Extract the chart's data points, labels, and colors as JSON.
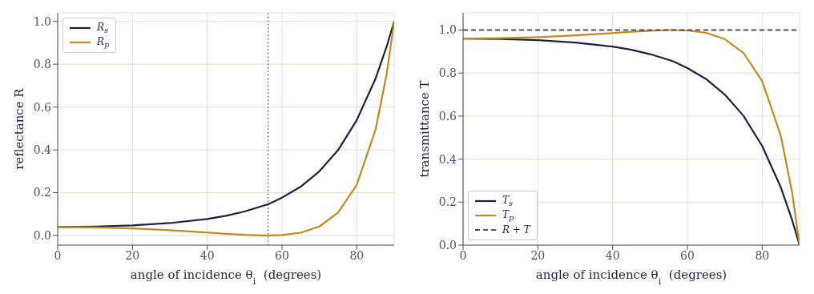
{
  "chart_data": [
    {
      "type": "line",
      "xlabel": "angle of incidence θ$_{i}$  (degrees)",
      "ylabel": "reflectance R",
      "x": [
        0,
        10,
        20,
        30,
        40,
        45,
        50,
        55,
        56.3,
        60,
        65,
        70,
        75,
        80,
        85,
        88,
        90
      ],
      "series": [
        {
          "name": "R$_{s}$",
          "color": "#1b2340",
          "values": [
            0.04,
            0.042,
            0.047,
            0.058,
            0.077,
            0.092,
            0.112,
            0.139,
            0.146,
            0.177,
            0.228,
            0.3,
            0.399,
            0.539,
            0.732,
            0.883,
            1.0
          ]
        },
        {
          "name": "R$_{p}$",
          "color": "#c28a1e",
          "values": [
            0.04,
            0.038,
            0.033,
            0.025,
            0.014,
            0.008,
            0.003,
            0.0,
            0.0,
            0.002,
            0.013,
            0.042,
            0.107,
            0.237,
            0.493,
            0.755,
            1.0
          ]
        }
      ],
      "xlim": [
        0,
        90
      ],
      "xticks": [
        0,
        20,
        40,
        60,
        80
      ],
      "ylim": [
        -0.045,
        1.04
      ],
      "yticks": [
        {
          "value": 0,
          "label": "0.0"
        },
        {
          "value": 0.2,
          "label": "0.2"
        },
        {
          "value": 0.4,
          "label": "0.4"
        },
        {
          "value": 0.6,
          "label": "0.6"
        },
        {
          "value": 0.8,
          "label": "0.8"
        },
        {
          "value": 1,
          "label": "1.0"
        }
      ],
      "ref_lines": [
        {
          "axis": "x",
          "value": 56.3,
          "color": "#4a5070",
          "line_style": "dotted"
        }
      ],
      "grid": true,
      "legend": "top left",
      "marker": "none",
      "line_style": "solid"
    },
    {
      "type": "line",
      "xlabel": "angle of incidence θ$_{i}$  (degrees)",
      "ylabel": "transmittance T",
      "x": [
        0,
        10,
        20,
        30,
        40,
        45,
        50,
        55,
        56.3,
        60,
        65,
        70,
        75,
        80,
        85,
        88,
        90
      ],
      "series": [
        {
          "name": "T$_{s}$",
          "color": "#1b2340",
          "values": [
            0.96,
            0.958,
            0.953,
            0.942,
            0.923,
            0.908,
            0.888,
            0.861,
            0.854,
            0.823,
            0.772,
            0.7,
            0.601,
            0.461,
            0.268,
            0.117,
            0.0
          ]
        },
        {
          "name": "T$_{p}$",
          "color": "#c28a1e",
          "values": [
            0.96,
            0.962,
            0.967,
            0.975,
            0.986,
            0.992,
            0.997,
            1.0,
            1.0,
            0.998,
            0.987,
            0.958,
            0.893,
            0.763,
            0.507,
            0.245,
            0.0
          ]
        },
        {
          "name": "R + T",
          "color": "#4a5070",
          "line_style": "dashed",
          "values": [
            1,
            1,
            1,
            1,
            1,
            1,
            1,
            1,
            1,
            1,
            1,
            1,
            1,
            1,
            1,
            1,
            1
          ]
        }
      ],
      "xlim": [
        0,
        90
      ],
      "xticks": [
        0,
        20,
        40,
        60,
        80
      ],
      "ylim": [
        0,
        1.08
      ],
      "yticks": [
        {
          "value": 0,
          "label": "0.0"
        },
        {
          "value": 0.2,
          "label": "0.2"
        },
        {
          "value": 0.4,
          "label": "0.4"
        },
        {
          "value": 0.6,
          "label": "0.6"
        },
        {
          "value": 0.8,
          "label": "0.8"
        },
        {
          "value": 1,
          "label": "1.0"
        }
      ],
      "grid": true,
      "legend": "bottom left",
      "marker": "none",
      "line_style": "solid"
    }
  ]
}
